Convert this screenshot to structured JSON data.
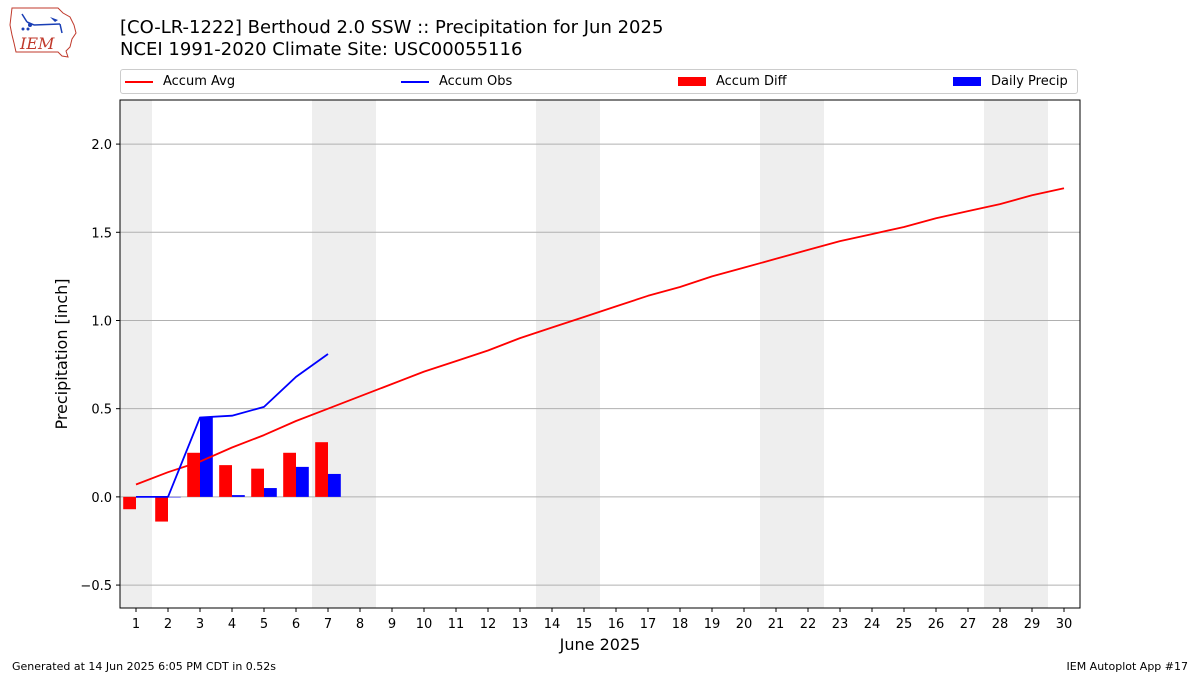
{
  "header": {
    "title_line1": "[CO-LR-1222] Berthoud 2.0 SSW :: Precipitation for Jun 2025",
    "title_line2": "NCEI 1991-2020 Climate Site: USC00055116",
    "logo_text": "IEM"
  },
  "footer": {
    "generated": "Generated at 14 Jun 2025 6:05 PM CDT in 0.52s",
    "app": "IEM Autoplot App #17"
  },
  "legend": [
    {
      "label": "Accum Avg",
      "kind": "line",
      "color": "#ff0000"
    },
    {
      "label": "Accum Obs",
      "kind": "line",
      "color": "#0000ff"
    },
    {
      "label": "Accum Diff",
      "kind": "box",
      "color": "#ff0000"
    },
    {
      "label": "Daily Precip",
      "kind": "box",
      "color": "#0000ff"
    }
  ],
  "chart_data": {
    "type": "bar",
    "xlabel": "June 2025",
    "ylabel": "Precipitation [inch]",
    "x": [
      1,
      2,
      3,
      4,
      5,
      6,
      7,
      8,
      9,
      10,
      11,
      12,
      13,
      14,
      15,
      16,
      17,
      18,
      19,
      20,
      21,
      22,
      23,
      24,
      25,
      26,
      27,
      28,
      29,
      30
    ],
    "xlim": [
      0.5,
      30.5
    ],
    "ylim": [
      -0.63,
      2.25
    ],
    "yticks": [
      -0.5,
      0.0,
      0.5,
      1.0,
      1.5,
      2.0
    ],
    "ytick_labels": [
      "−0.5",
      "0.0",
      "0.5",
      "1.0",
      "1.5",
      "2.0"
    ],
    "grid": "horizontal",
    "weekend_shading_days": [
      1,
      7,
      8,
      14,
      15,
      21,
      22,
      28,
      29
    ],
    "weekend_shading_color": "#eeeeee",
    "series": [
      {
        "name": "Accum Avg",
        "type": "line",
        "color": "#ff0000",
        "x": [
          1,
          2,
          3,
          4,
          5,
          6,
          7,
          8,
          9,
          10,
          11,
          12,
          13,
          14,
          15,
          16,
          17,
          18,
          19,
          20,
          21,
          22,
          23,
          24,
          25,
          26,
          27,
          28,
          29,
          30
        ],
        "values": [
          0.07,
          0.14,
          0.2,
          0.28,
          0.35,
          0.43,
          0.5,
          0.57,
          0.64,
          0.71,
          0.77,
          0.83,
          0.9,
          0.96,
          1.02,
          1.08,
          1.14,
          1.19,
          1.25,
          1.3,
          1.35,
          1.4,
          1.45,
          1.49,
          1.53,
          1.58,
          1.62,
          1.66,
          1.71,
          1.75
        ]
      },
      {
        "name": "Accum Obs",
        "type": "line",
        "color": "#0000ff",
        "x": [
          1,
          2,
          3,
          4,
          5,
          6,
          7
        ],
        "values": [
          0.0,
          0.0,
          0.45,
          0.46,
          0.51,
          0.68,
          0.81
        ]
      },
      {
        "name": "Accum Diff",
        "type": "bar",
        "color": "#ff0000",
        "offset": -0.2,
        "x": [
          1,
          2,
          3,
          4,
          5,
          6,
          7
        ],
        "values": [
          -0.07,
          -0.14,
          0.25,
          0.18,
          0.16,
          0.25,
          0.31
        ]
      },
      {
        "name": "Daily Precip",
        "type": "bar",
        "color": "#0000ff",
        "offset": 0.2,
        "x": [
          1,
          2,
          3,
          4,
          5,
          6,
          7
        ],
        "values": [
          0.0,
          0.0,
          0.45,
          0.01,
          0.05,
          0.17,
          0.13
        ]
      }
    ]
  }
}
